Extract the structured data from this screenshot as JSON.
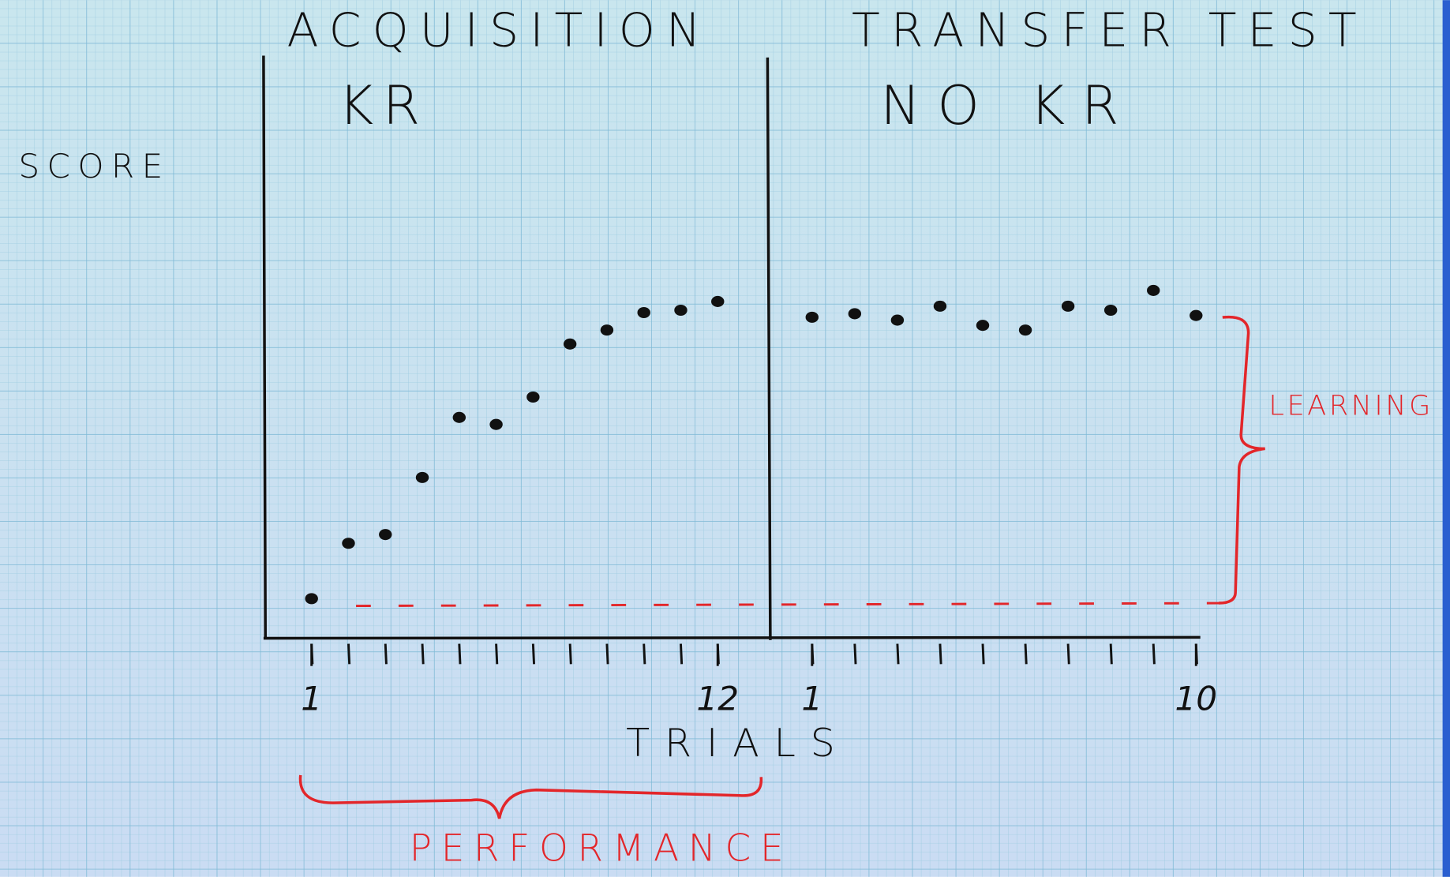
{
  "chart_data": [
    {
      "type": "scatter",
      "title": "ACQUISITION",
      "subtitle": "KR",
      "ylabel": "SCORE",
      "xlabel": "TRIALS",
      "x": [
        1,
        2,
        3,
        4,
        5,
        6,
        7,
        8,
        9,
        10,
        11,
        12
      ],
      "values": [
        6.8,
        16.3,
        17.8,
        27.6,
        37.9,
        36.7,
        41.4,
        50.5,
        52.9,
        55.9,
        56.3,
        57.8
      ],
      "color": "#111111",
      "xlim": [
        -0.3,
        13.4
      ],
      "xticks": [
        1,
        12
      ],
      "ylim": [
        0,
        100
      ],
      "yticks": [],
      "annotation": "PERFORMANCE"
    },
    {
      "type": "scatter",
      "title": "TRANSFER TEST",
      "subtitle": "NO KR",
      "x": [
        1,
        2,
        3,
        4,
        5,
        6,
        7,
        8,
        9,
        10
      ],
      "values": [
        55.1,
        55.7,
        54.6,
        57.0,
        53.7,
        52.9,
        57.0,
        56.3,
        59.7,
        55.4
      ],
      "color": "#111111",
      "xlim": [
        0,
        10.1
      ],
      "xticks": [
        1,
        10
      ],
      "ylim": [
        0,
        100
      ],
      "yticks": [],
      "annotation": "LEARNING"
    }
  ]
}
